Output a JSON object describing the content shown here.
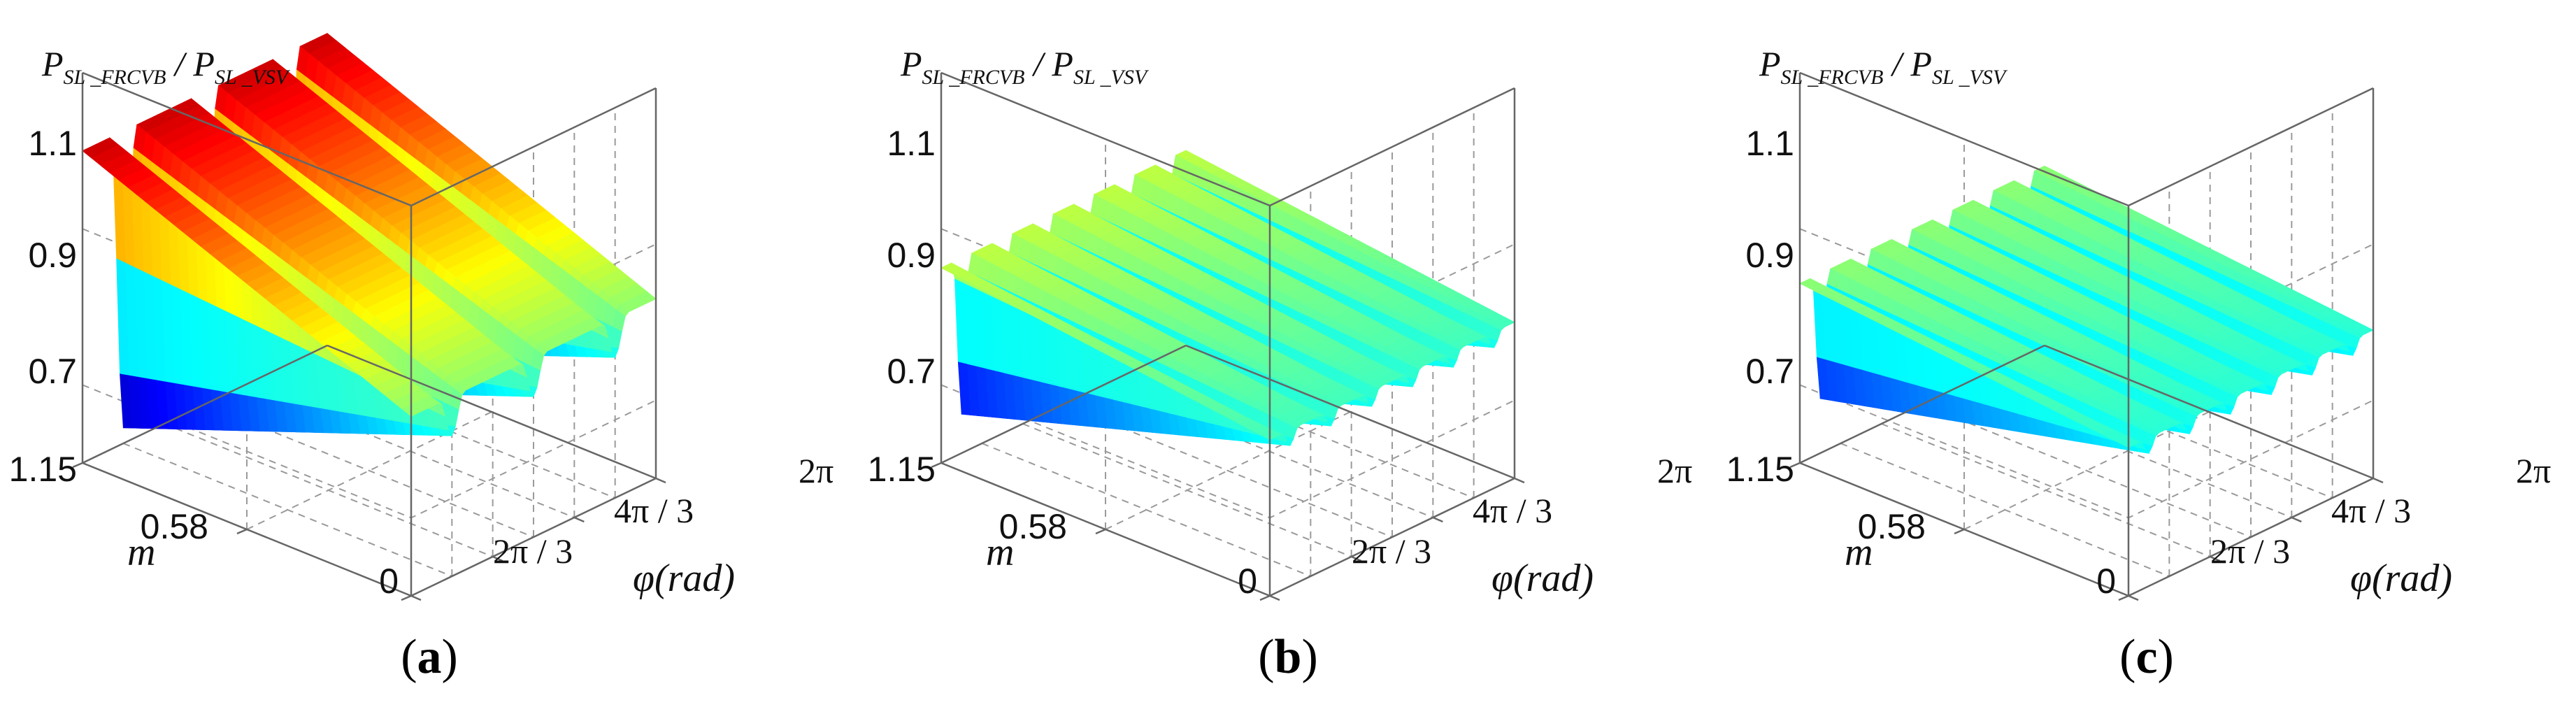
{
  "figure": {
    "panels": [
      {
        "id": "a",
        "caption_open": "(",
        "caption_letter": "a",
        "caption_close": ")"
      },
      {
        "id": "b",
        "caption_open": "(",
        "caption_letter": "b",
        "caption_close": ")"
      },
      {
        "id": "c",
        "caption_open": "(",
        "caption_letter": "c",
        "caption_close": ")"
      }
    ]
  },
  "chart_data": [
    {
      "type": "surface3d",
      "panel": "a",
      "title": "",
      "zlabel": {
        "main1": "P",
        "sub1": "SL _FRCVB",
        "slash": " / ",
        "main2": "P",
        "sub2": "SL _VSV"
      },
      "xlabel": "φ(rad)",
      "ylabel": "m",
      "x_ticks": [
        "2π / 3",
        "4π / 3",
        "2π"
      ],
      "y_ticks": [
        "1.15",
        "0.58",
        "0"
      ],
      "z_ticks": [
        "1.1",
        "0.9",
        "0.7"
      ],
      "xlim": [
        0,
        6.2832
      ],
      "ylim": [
        0,
        1.15
      ],
      "zlim": [
        0.6,
        1.1
      ],
      "colormap": "jet",
      "grid": true,
      "surface": {
        "periods": 3,
        "peak_value": 1.0,
        "ridge_low_m": 0.83,
        "valley_low_m": 0.78,
        "valley_high_m": 0.62,
        "valley_width": 0.3
      }
    },
    {
      "type": "surface3d",
      "panel": "b",
      "title": "",
      "zlabel": {
        "main1": "P",
        "sub1": "SL _FRCVB",
        "slash": " / ",
        "main2": "P",
        "sub2": "SL _VSV"
      },
      "xlabel": "φ(rad)",
      "ylabel": "m",
      "x_ticks": [
        "2π / 3",
        "4π / 3",
        "2π"
      ],
      "y_ticks": [
        "1.15",
        "0.58",
        "0"
      ],
      "z_ticks": [
        "1.1",
        "0.9",
        "0.7"
      ],
      "xlim": [
        0,
        6.2832
      ],
      "ylim": [
        0,
        1.15
      ],
      "zlim": [
        0.6,
        1.1
      ],
      "colormap": "jet",
      "grid": true,
      "surface": {
        "periods": 6,
        "peak_value": 0.85,
        "ridge_low_m": 0.8,
        "valley_low_m": 0.78,
        "valley_high_m": 0.65,
        "valley_width": 0.42
      }
    },
    {
      "type": "surface3d",
      "panel": "c",
      "title": "",
      "zlabel": {
        "main1": "P",
        "sub1": "SL _FRCVB",
        "slash": " / ",
        "main2": "P",
        "sub2": "SL _VSV"
      },
      "xlabel": "φ(rad)",
      "ylabel": "m",
      "x_ticks": [
        "2π / 3",
        "4π / 3",
        "2π"
      ],
      "y_ticks": [
        "1.15",
        "0.58",
        "0"
      ],
      "z_ticks": [
        "1.1",
        "0.9",
        "0.7"
      ],
      "xlim": [
        0,
        6.2832
      ],
      "ylim": [
        0,
        1.15
      ],
      "zlim": [
        0.6,
        1.1
      ],
      "colormap": "jet",
      "grid": true,
      "surface": {
        "periods": 6,
        "peak_value": 0.83,
        "ridge_low_m": 0.79,
        "valley_low_m": 0.77,
        "valley_high_m": 0.67,
        "valley_width": 0.42
      }
    }
  ]
}
